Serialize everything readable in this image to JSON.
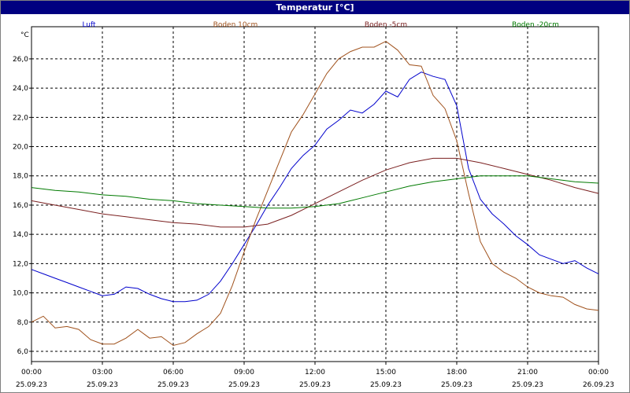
{
  "window": {
    "title": "Temperatur [°C]"
  },
  "chart_data": {
    "type": "line",
    "title": "Temperatur [°C]",
    "ylabel": "°C",
    "ylim": [
      5.3,
      28.2
    ],
    "yticks": [
      6,
      8,
      10,
      12,
      14,
      16,
      18,
      20,
      22,
      24,
      26
    ],
    "ytick_labels": [
      "6,0",
      "8,0",
      "10,0",
      "12,0",
      "14,0",
      "16,0",
      "18,0",
      "20,0",
      "22,0",
      "24,0",
      "26,0"
    ],
    "xlim": [
      0,
      24
    ],
    "xticks": [
      0,
      3,
      6,
      9,
      12,
      15,
      18,
      21,
      24
    ],
    "xtick_times": [
      "00:00",
      "03:00",
      "06:00",
      "09:00",
      "12:00",
      "15:00",
      "18:00",
      "21:00",
      "00:00"
    ],
    "xtick_dates": [
      "25.09.23",
      "25.09.23",
      "25.09.23",
      "25.09.23",
      "25.09.23",
      "25.09.23",
      "25.09.23",
      "25.09.23",
      "26.09.23"
    ],
    "grid": true,
    "legend_position": "top",
    "series": [
      {
        "name": "Luft",
        "color": "#0000cc",
        "x": [
          0,
          0.5,
          1,
          1.5,
          2,
          2.5,
          3,
          3.5,
          4,
          4.5,
          5,
          5.5,
          6,
          6.5,
          7,
          7.5,
          8,
          8.5,
          9,
          9.5,
          10,
          10.5,
          11,
          11.5,
          12,
          12.5,
          13,
          13.5,
          14,
          14.5,
          15,
          15.5,
          16,
          16.5,
          17,
          17.5,
          18,
          18.5,
          19,
          19.5,
          20,
          20.5,
          21,
          21.5,
          22,
          22.5,
          23,
          23.5,
          24
        ],
        "y": [
          11.6,
          11.3,
          11.0,
          10.7,
          10.4,
          10.1,
          9.8,
          9.9,
          10.4,
          10.3,
          9.9,
          9.6,
          9.4,
          9.4,
          9.5,
          9.9,
          10.8,
          12.0,
          13.3,
          14.6,
          16.0,
          17.2,
          18.5,
          19.4,
          20.1,
          21.2,
          21.8,
          22.5,
          22.3,
          22.9,
          23.8,
          23.4,
          24.6,
          25.1,
          24.8,
          24.6,
          22.8,
          18.5,
          16.4,
          15.4,
          14.7,
          13.9,
          13.3,
          12.6,
          12.3,
          12.0,
          12.2,
          11.7,
          11.3
        ]
      },
      {
        "name": "Boden 10cm",
        "color": "#a0521d",
        "x": [
          0,
          0.5,
          1,
          1.5,
          2,
          2.5,
          3,
          3.5,
          4,
          4.5,
          5,
          5.5,
          6,
          6.5,
          7,
          7.5,
          8,
          8.5,
          9,
          9.5,
          10,
          10.5,
          11,
          11.5,
          12,
          12.5,
          13,
          13.5,
          14,
          14.5,
          15,
          15.5,
          16,
          16.5,
          17,
          17.5,
          18,
          18.5,
          19,
          19.5,
          20,
          20.5,
          21,
          21.5,
          22,
          22.5,
          23,
          23.5,
          24
        ],
        "y": [
          8.0,
          8.4,
          7.6,
          7.7,
          7.5,
          6.8,
          6.5,
          6.5,
          6.9,
          7.5,
          6.9,
          7.0,
          6.4,
          6.6,
          7.2,
          7.7,
          8.6,
          10.5,
          12.8,
          15.0,
          17.0,
          19.0,
          21.0,
          22.2,
          23.6,
          25.0,
          26.0,
          26.5,
          26.8,
          26.8,
          27.2,
          26.6,
          25.6,
          25.5,
          23.5,
          22.6,
          20.4,
          16.8,
          13.5,
          12.0,
          11.4,
          11.0,
          10.4,
          10.0,
          9.8,
          9.7,
          9.2,
          8.9,
          8.8
        ]
      },
      {
        "name": "Boden -5cm",
        "color": "#7a1f1f",
        "x": [
          0,
          1,
          2,
          3,
          4,
          5,
          6,
          7,
          8,
          9,
          10,
          11,
          12,
          13,
          14,
          15,
          16,
          17,
          18,
          19,
          20,
          21,
          22,
          23,
          24
        ],
        "y": [
          16.3,
          16.0,
          15.7,
          15.4,
          15.2,
          15.0,
          14.8,
          14.7,
          14.5,
          14.5,
          14.7,
          15.3,
          16.1,
          16.9,
          17.7,
          18.4,
          18.9,
          19.2,
          19.2,
          18.9,
          18.5,
          18.1,
          17.7,
          17.2,
          16.8
        ]
      },
      {
        "name": "Boden -20cm",
        "color": "#007a00",
        "x": [
          0,
          1,
          2,
          3,
          4,
          5,
          6,
          7,
          8,
          9,
          10,
          11,
          12,
          13,
          14,
          15,
          16,
          17,
          18,
          19,
          20,
          21,
          22,
          23,
          24
        ],
        "y": [
          17.2,
          17.0,
          16.9,
          16.7,
          16.6,
          16.4,
          16.3,
          16.1,
          16.0,
          15.9,
          15.8,
          15.8,
          15.9,
          16.1,
          16.5,
          16.9,
          17.3,
          17.6,
          17.8,
          18.0,
          18.0,
          18.0,
          17.8,
          17.6,
          17.5
        ]
      }
    ]
  }
}
